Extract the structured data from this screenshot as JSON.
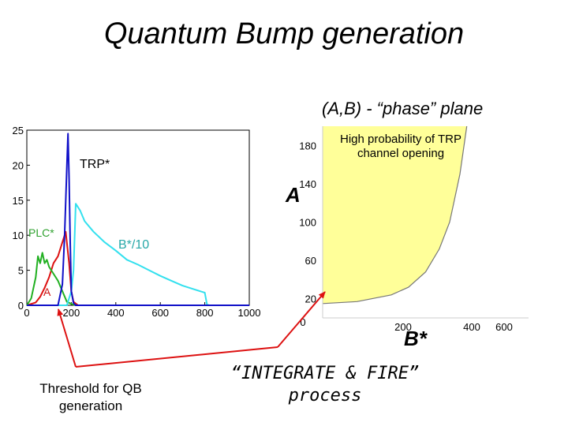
{
  "title": "Quantum Bump generation",
  "phase_plane_title": "(A,B) - “phase” plane",
  "notes": {
    "high_probability": "High probability of TRP channel opening",
    "threshold": "Threshold for QB generation",
    "integrate": "“INTEGRATE & FIRE” process"
  },
  "colors": {
    "trp": "#1010c8",
    "plc": "#22b022",
    "b": "#33e0ee",
    "a": "#dd1111",
    "region": "#ffff99",
    "arrow": "#dd1111"
  },
  "chart_data": [
    {
      "type": "line",
      "title": "",
      "xlabel": "",
      "ylabel": "",
      "xlim": [
        0,
        1000
      ],
      "ylim": [
        0,
        25
      ],
      "x_ticks": [
        0,
        200,
        400,
        600,
        800,
        1000
      ],
      "x_tick_labels": [
        "0",
        "200",
        "400",
        "600",
        "800",
        "1000"
      ],
      "y_ticks": [
        0,
        5,
        10,
        15,
        20,
        25
      ],
      "y_tick_labels": [
        "0",
        "5",
        "10",
        "15",
        "20",
        "25"
      ],
      "series": [
        {
          "name": "TRP*",
          "color_key": "trp",
          "x": [
            0,
            140,
            160,
            170,
            180,
            185,
            190,
            195,
            200,
            210,
            220,
            1000
          ],
          "y": [
            0,
            0,
            3,
            10,
            20,
            24.5,
            18,
            9,
            2,
            0.3,
            0,
            0
          ]
        },
        {
          "name": "PLC*",
          "color_key": "plc",
          "x": [
            0,
            20,
            40,
            50,
            60,
            70,
            80,
            90,
            100,
            110,
            120,
            140,
            160,
            180,
            200,
            220
          ],
          "y": [
            0,
            1,
            4,
            7,
            6,
            7.5,
            6,
            6.5,
            5.5,
            5,
            4.5,
            3.5,
            2,
            0.5,
            0.2,
            0
          ]
        },
        {
          "name": "B*/10",
          "color_key": "b",
          "x": [
            0,
            180,
            200,
            210,
            220,
            240,
            260,
            300,
            350,
            400,
            450,
            500,
            550,
            600,
            650,
            700,
            750,
            800,
            810,
            820
          ],
          "y": [
            0,
            0,
            2,
            5,
            14.5,
            13.5,
            12,
            10.5,
            9,
            7.8,
            6.5,
            5.8,
            5,
            4.2,
            3.5,
            2.8,
            2.3,
            1.8,
            0.1,
            0
          ]
        },
        {
          "name": "A",
          "color_key": "a",
          "x": [
            0,
            40,
            60,
            80,
            100,
            120,
            140,
            160,
            175,
            190,
            200,
            210,
            230
          ],
          "y": [
            0,
            0.4,
            1.2,
            2.5,
            4,
            6,
            7,
            9,
            10.5,
            6,
            2,
            0.5,
            0
          ]
        }
      ],
      "annotations": [
        "TRP*",
        "PLC*",
        "B*/10",
        "A"
      ]
    },
    {
      "type": "area",
      "title": "",
      "xlabel": "B*",
      "ylabel": "A",
      "xlim": [
        0,
        600
      ],
      "ylim": [
        0,
        200
      ],
      "x_ticks": [
        0,
        200,
        400,
        600
      ],
      "x_tick_labels": [
        "0",
        "200",
        "400",
        "600"
      ],
      "y_ticks": [
        20,
        60,
        100,
        140,
        180
      ],
      "y_tick_labels": [
        "20",
        "60",
        "100",
        "140",
        "180"
      ],
      "series": [
        {
          "name": "",
          "boundary_x": [
            0,
            100,
            200,
            250,
            300,
            340,
            370,
            400,
            420
          ],
          "boundary_y": [
            15,
            17,
            24,
            32,
            48,
            72,
            100,
            150,
            200
          ]
        }
      ]
    }
  ]
}
